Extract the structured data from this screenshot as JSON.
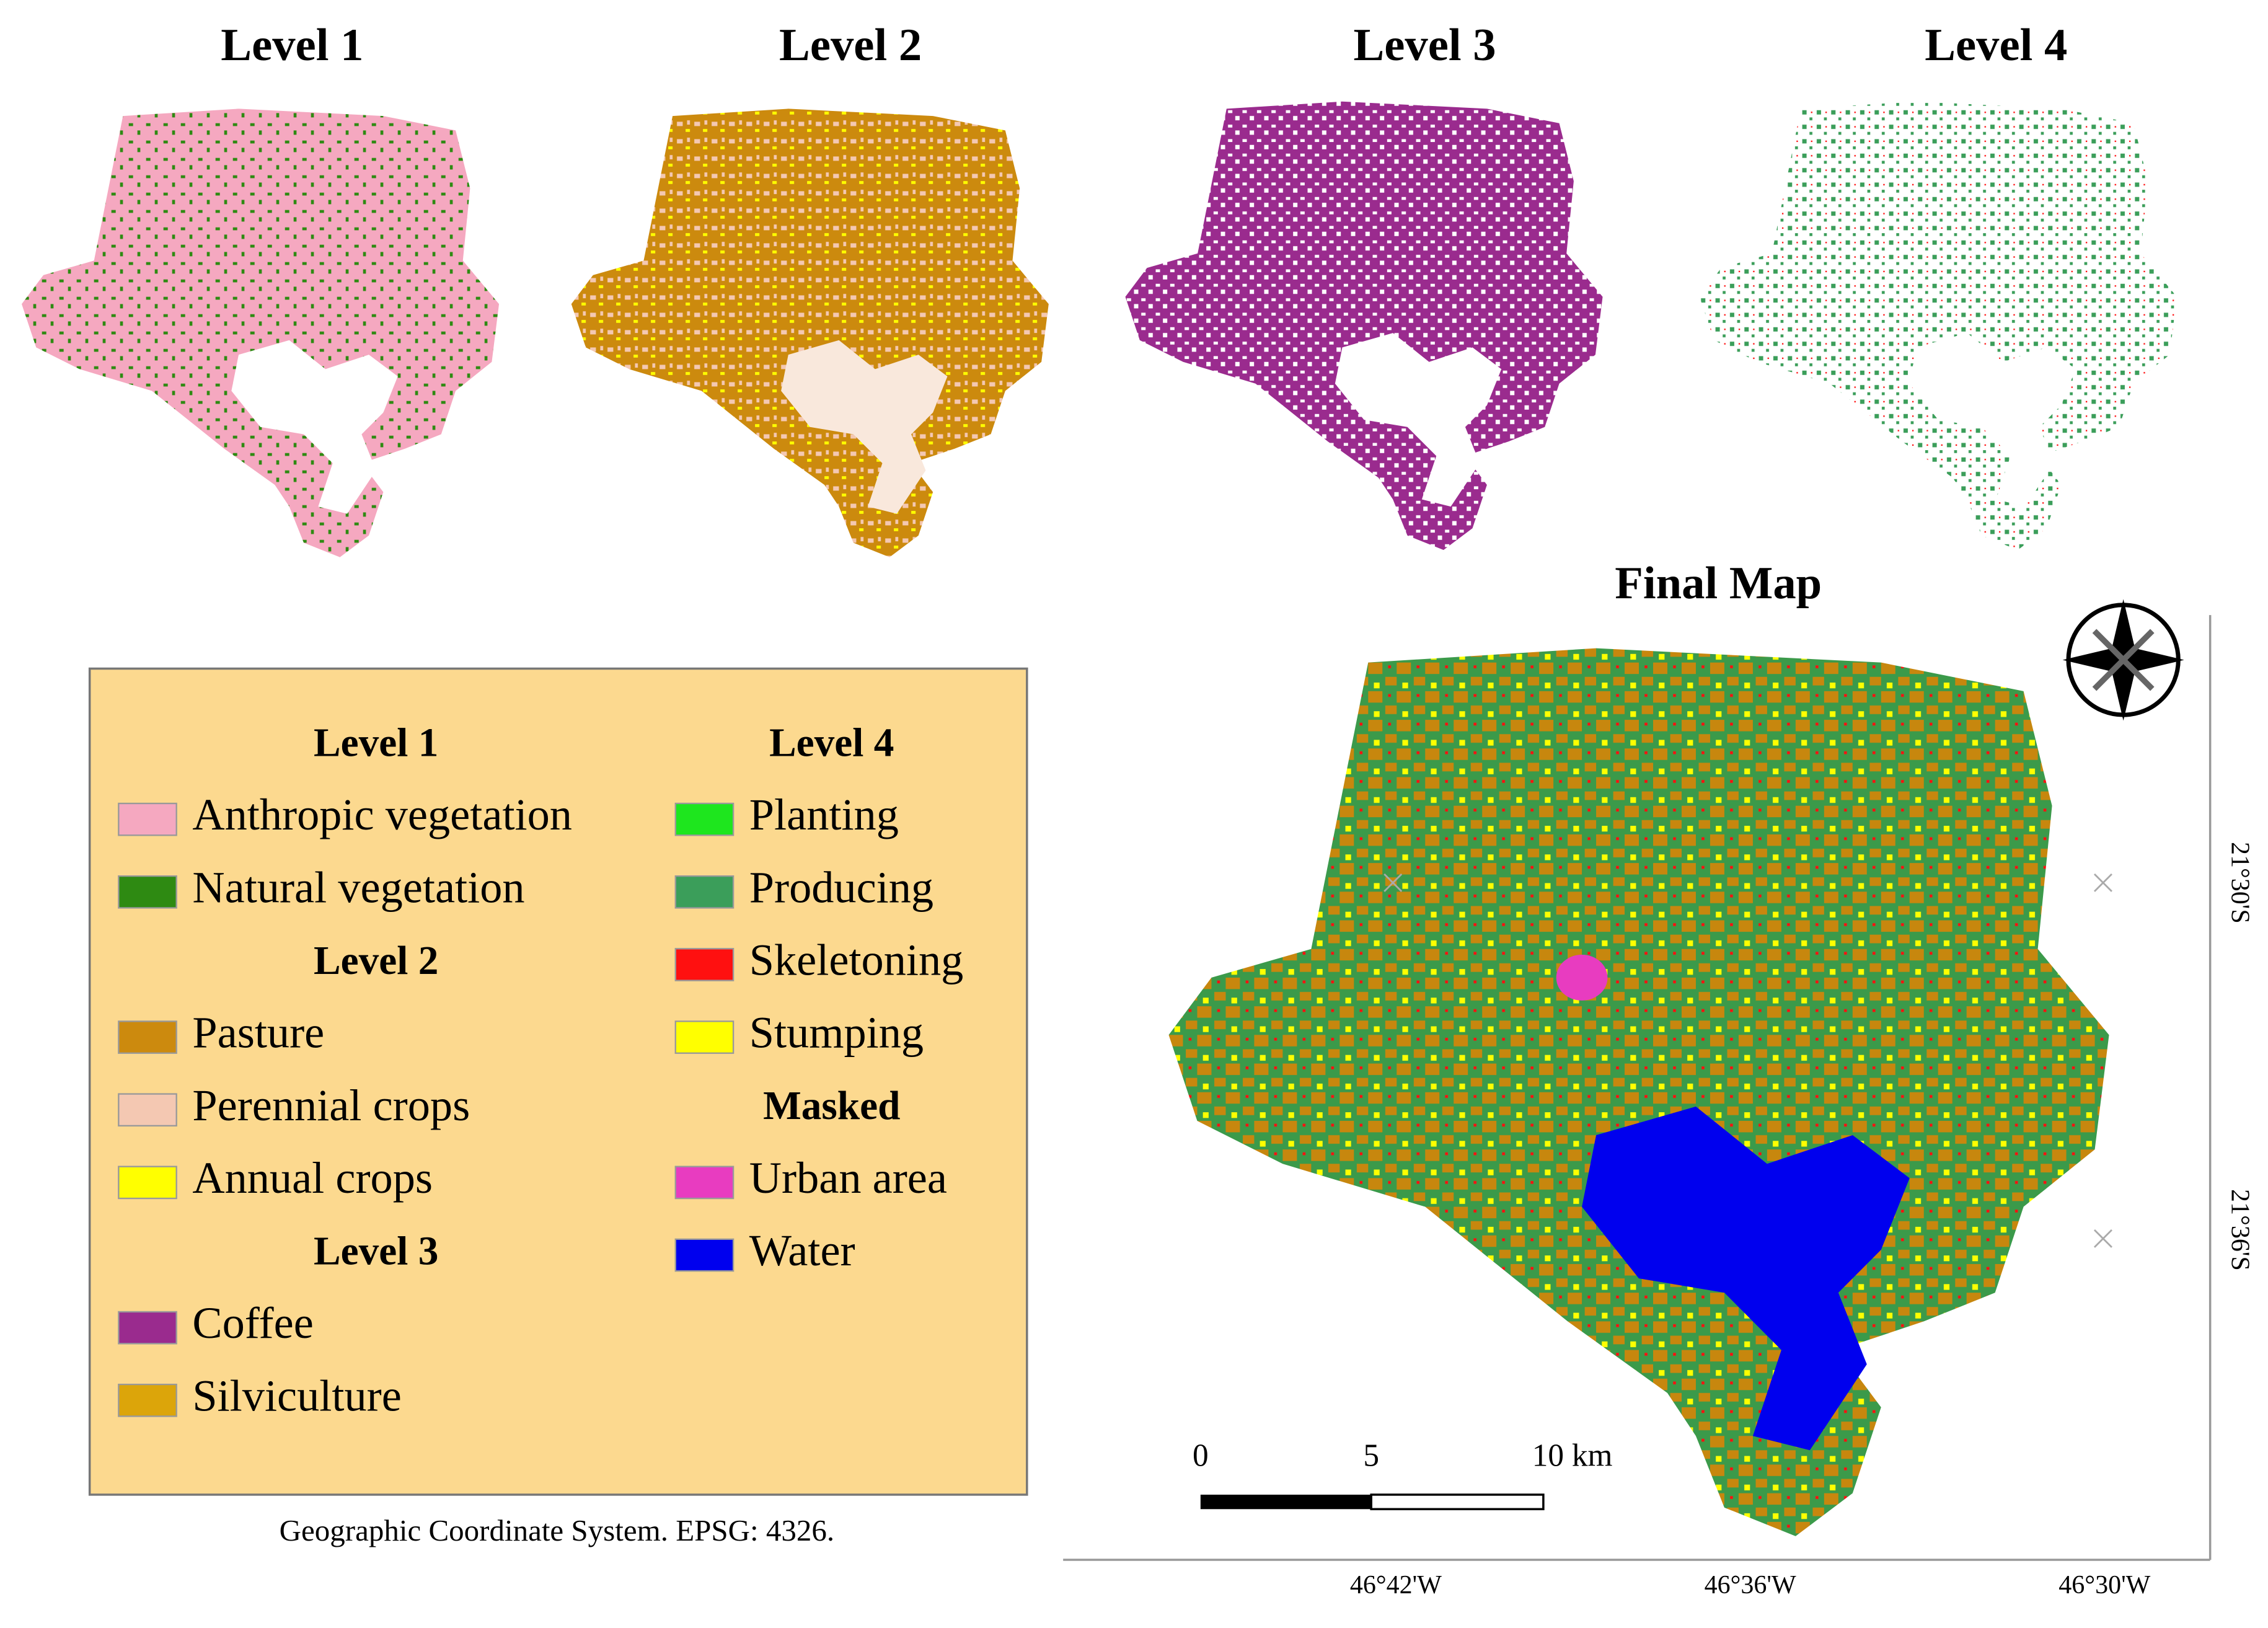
{
  "panels": [
    {
      "title": "Level 1"
    },
    {
      "title": "Level 2"
    },
    {
      "title": "Level 3"
    },
    {
      "title": "Level 4"
    }
  ],
  "final_map": {
    "title": "Final Map",
    "scale_labels": [
      "0",
      "5",
      "10 km"
    ],
    "lat_labels": [
      "21°30'S",
      "21°36'S"
    ],
    "lon_labels": [
      "46°42'W",
      "46°36'W",
      "46°30'W"
    ]
  },
  "legend": {
    "groups": [
      {
        "title": "Level 1",
        "items": [
          {
            "label": "Anthropic vegetation",
            "color": "#f5a8c0"
          },
          {
            "label": "Natural vegetation",
            "color": "#2e8a12"
          }
        ]
      },
      {
        "title": "Level 2",
        "items": [
          {
            "label": "Pasture",
            "color": "#cc8a0e"
          },
          {
            "label": "Perennial crops",
            "color": "#f4c8b2"
          },
          {
            "label": "Annual crops",
            "color": "#ffff00"
          }
        ]
      },
      {
        "title": "Level 3",
        "items": [
          {
            "label": "Coffee",
            "color": "#9a2b8e"
          },
          {
            "label": "Silviculture",
            "color": "#dca50a"
          }
        ]
      },
      {
        "title": "Level 4",
        "items": [
          {
            "label": "Planting",
            "color": "#1ee61e"
          },
          {
            "label": "Producing",
            "color": "#3b9e5a"
          },
          {
            "label": "Skeletoning",
            "color": "#ff1010"
          },
          {
            "label": "Stumping",
            "color": "#ffff00"
          }
        ]
      },
      {
        "title": "Masked",
        "items": [
          {
            "label": "Urban area",
            "color": "#e83cc0"
          },
          {
            "label": "Water",
            "color": "#0000ee"
          }
        ]
      }
    ]
  },
  "footnote": "Geographic Coordinate System. EPSG: 4326."
}
